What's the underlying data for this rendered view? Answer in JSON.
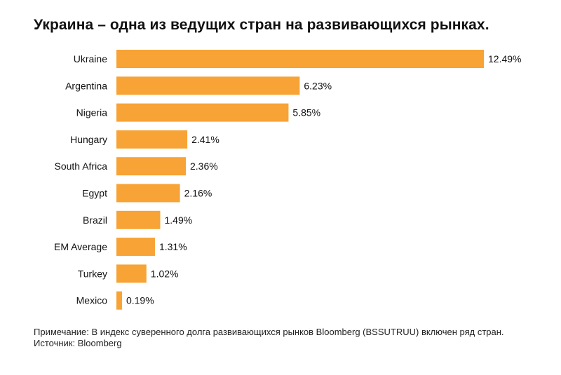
{
  "title": "Украина – одна из ведущих стран на развивающихся рынках.",
  "note": "Примечание: В индекс суверенного долга развивающихся рынков Bloomberg (BSSUTRUU) включен ряд стран.",
  "source": "Источник: Bloomberg",
  "colors": {
    "bar": "#F7A335",
    "text": "#111111"
  },
  "chart_data": {
    "type": "bar",
    "orientation": "horizontal",
    "title": "Украина – одна из ведущих стран на развивающихся рынках.",
    "categories": [
      "Ukraine",
      "Argentina",
      "Nigeria",
      "Hungary",
      "South Africa",
      "Egypt",
      "Brazil",
      "EM Average",
      "Turkey",
      "Mexico"
    ],
    "values": [
      12.49,
      6.23,
      5.85,
      2.41,
      2.36,
      2.16,
      1.49,
      1.31,
      1.02,
      0.19
    ],
    "value_labels": [
      "12.49%",
      "6.23%",
      "5.85%",
      "2.41%",
      "2.36%",
      "2.16%",
      "1.49%",
      "1.31%",
      "1.02%",
      "0.19%"
    ],
    "xlabel": "",
    "ylabel": "",
    "xlim": [
      0,
      12.49
    ],
    "grid": false,
    "legend": "none"
  }
}
